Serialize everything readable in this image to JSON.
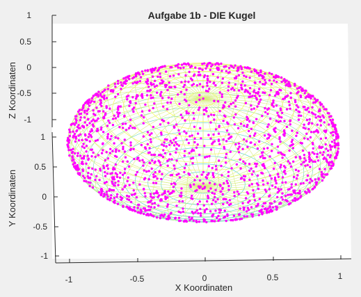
{
  "chart_data": {
    "type": "scatter",
    "title": "Aufgabe 1b - DIE Kugel",
    "xlabel": "X Koordinaten",
    "ylabel": "Y Koordinaten",
    "zlabel": "Z Koordinaten",
    "xlim": [
      -1,
      1
    ],
    "ylim": [
      -1,
      1
    ],
    "zlim": [
      -1,
      1
    ],
    "x_ticks": [
      "-1",
      "-0.5",
      "0",
      "0.5",
      "1"
    ],
    "y_ticks": [
      "-1",
      "-0.5",
      "0",
      "0.5",
      "1"
    ],
    "z_ticks": [
      "-1",
      "-0.5",
      "0",
      "0.5",
      "1"
    ],
    "grid": false,
    "surface": {
      "shape": "sphere",
      "radius": 1,
      "colormap": "parula",
      "style": "mesh"
    },
    "scatter_series": {
      "marker": "dot",
      "color": "#ff00ff",
      "on_surface": "sphere",
      "radius": 1
    },
    "view": "3-D perspective, oblique from above"
  },
  "colors": {
    "figure_bg": "#f0f0f0",
    "axes_bg": "#ffffff",
    "marker": "#ff00ff",
    "surface_top": "#ffff00",
    "surface_mid": "#c8e68c",
    "surface_bottom": "#1ec8c8"
  }
}
